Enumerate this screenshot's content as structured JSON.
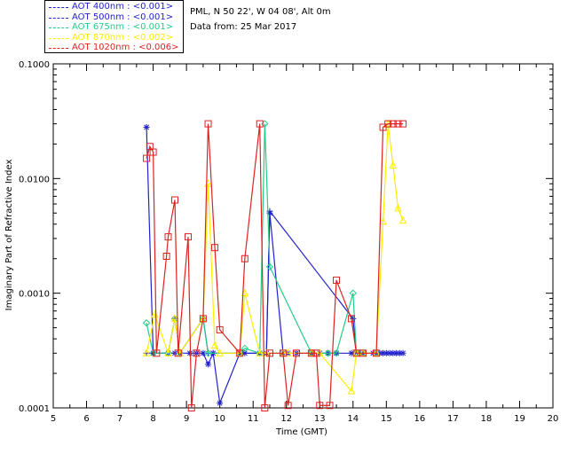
{
  "header": {
    "location": "PML, N 50 22', W 04 08', Alt 0m",
    "date": "Data from: 25 Mar 2017"
  },
  "legend": [
    {
      "label": "AOT  400nm : <0.001>",
      "color": "#2222cc"
    },
    {
      "label": "AOT  500nm : <0.001>",
      "color": "#2222cc"
    },
    {
      "label": "AOT  675nm : <0.001>",
      "color": "#22cc88"
    },
    {
      "label": "AOT  870nm : <0.002>",
      "color": "#ffee00"
    },
    {
      "label": "AOT 1020nm : <0.006>",
      "color": "#dd2222"
    }
  ],
  "chart_data": {
    "type": "line",
    "title": "",
    "xlabel": "Time (GMT)",
    "ylabel": "Imaginary Part of Refractive Index",
    "xlim": [
      5,
      20
    ],
    "ylim": [
      0.0001,
      0.1
    ],
    "yscale": "log",
    "xticks": [
      5,
      6,
      7,
      8,
      9,
      10,
      11,
      12,
      13,
      14,
      15,
      16,
      17,
      18,
      19,
      20
    ],
    "yticks": [
      {
        "value": 0.0001,
        "label": "0.0001"
      },
      {
        "value": 0.001,
        "label": "0.0010"
      },
      {
        "value": 0.01,
        "label": "0.0100"
      },
      {
        "value": 0.1,
        "label": "0.1000"
      }
    ],
    "series": [
      {
        "name": "AOT 500nm",
        "color": "#2222cc",
        "marker": "star",
        "points": [
          [
            7.8,
            0.028
          ],
          [
            8.0,
            0.0003
          ],
          [
            8.45,
            0.0003
          ],
          [
            8.65,
            0.0003
          ],
          [
            8.8,
            0.0003
          ],
          [
            9.1,
            0.0003
          ],
          [
            9.3,
            0.0003
          ],
          [
            9.5,
            0.0003
          ],
          [
            9.65,
            0.00024
          ],
          [
            9.8,
            0.0003
          ],
          [
            10.0,
            0.00011
          ],
          [
            10.6,
            0.0003
          ],
          [
            10.75,
            0.0003
          ],
          [
            11.2,
            0.0003
          ],
          [
            11.4,
            0.0003
          ],
          [
            11.5,
            0.005
          ],
          [
            11.9,
            0.0003
          ],
          [
            12.05,
            0.0003
          ],
          [
            12.3,
            0.0003
          ],
          [
            12.75,
            0.0003
          ],
          [
            13.0,
            0.0003
          ],
          [
            13.25,
            0.0003
          ],
          [
            13.5,
            0.0003
          ],
          [
            13.95,
            0.0003
          ],
          [
            14.1,
            0.0003
          ],
          [
            14.3,
            0.0003
          ],
          [
            14.6,
            0.0003
          ],
          [
            14.7,
            0.0003
          ],
          [
            14.8,
            0.0003
          ],
          [
            14.9,
            0.0003
          ],
          [
            15.0,
            0.0003
          ],
          [
            15.1,
            0.0003
          ],
          [
            15.2,
            0.0003
          ],
          [
            15.3,
            0.0003
          ],
          [
            15.4,
            0.0003
          ],
          [
            15.5,
            0.0003
          ]
        ]
      },
      {
        "name": "AOT 400nm",
        "color": "#2222cc",
        "marker": "plus",
        "points": [
          [
            7.8,
            0.0003
          ],
          [
            8.0,
            0.0003
          ],
          [
            8.45,
            0.0003
          ],
          [
            8.65,
            0.0006
          ],
          [
            8.8,
            0.0003
          ],
          [
            9.5,
            0.0006
          ],
          [
            9.65,
            0.0003
          ],
          [
            9.8,
            0.0003
          ],
          [
            11.4,
            0.0003
          ],
          [
            11.5,
            0.0052
          ],
          [
            14.0,
            0.0006
          ],
          [
            14.1,
            0.0003
          ],
          [
            14.3,
            0.0003
          ],
          [
            14.7,
            0.0003
          ]
        ]
      },
      {
        "name": "AOT 675nm",
        "color": "#22cc88",
        "marker": "diamond",
        "points": [
          [
            7.8,
            0.00055
          ],
          [
            8.0,
            0.0003
          ],
          [
            8.45,
            0.0003
          ],
          [
            8.65,
            0.0006
          ],
          [
            8.8,
            0.0003
          ],
          [
            9.5,
            0.0006
          ],
          [
            9.65,
            0.0003
          ],
          [
            10.6,
            0.0003
          ],
          [
            10.75,
            0.00033
          ],
          [
            11.2,
            0.0003
          ],
          [
            11.35,
            0.03
          ],
          [
            11.5,
            0.0017
          ],
          [
            12.75,
            0.0003
          ],
          [
            13.25,
            0.0003
          ],
          [
            13.5,
            0.0003
          ],
          [
            14.0,
            0.001
          ],
          [
            14.1,
            0.0003
          ],
          [
            14.3,
            0.0003
          ],
          [
            14.7,
            0.0003
          ]
        ]
      },
      {
        "name": "AOT 870nm",
        "color": "#ffee00",
        "marker": "triangle",
        "points": [
          [
            7.8,
            0.0003
          ],
          [
            8.05,
            0.00065
          ],
          [
            8.45,
            0.0003
          ],
          [
            8.65,
            0.0006
          ],
          [
            8.8,
            0.0003
          ],
          [
            9.5,
            0.0006
          ],
          [
            9.65,
            0.009
          ],
          [
            9.85,
            0.00035
          ],
          [
            10.0,
            0.0003
          ],
          [
            10.6,
            0.0003
          ],
          [
            10.75,
            0.001
          ],
          [
            11.2,
            0.0003
          ],
          [
            11.4,
            0.0003
          ],
          [
            11.9,
            0.0003
          ],
          [
            12.05,
            0.0003
          ],
          [
            12.75,
            0.0003
          ],
          [
            13.0,
            0.0003
          ],
          [
            13.95,
            0.00014
          ],
          [
            14.1,
            0.0003
          ],
          [
            14.3,
            0.0003
          ],
          [
            14.7,
            0.0003
          ],
          [
            14.9,
            0.0042
          ],
          [
            15.05,
            0.03
          ],
          [
            15.2,
            0.013
          ],
          [
            15.35,
            0.0055
          ],
          [
            15.5,
            0.0043
          ]
        ]
      },
      {
        "name": "AOT 1020nm",
        "color": "#dd2222",
        "marker": "square",
        "points": [
          [
            7.8,
            0.015
          ],
          [
            7.9,
            0.019
          ],
          [
            8.0,
            0.017
          ],
          [
            8.1,
            0.0003
          ],
          [
            8.4,
            0.0021
          ],
          [
            8.45,
            0.0031
          ],
          [
            8.65,
            0.0065
          ],
          [
            8.75,
            0.0003
          ],
          [
            9.05,
            0.0031
          ],
          [
            9.15,
            0.0001
          ],
          [
            9.3,
            0.0003
          ],
          [
            9.5,
            0.0006
          ],
          [
            9.65,
            0.03
          ],
          [
            9.85,
            0.0025
          ],
          [
            10.0,
            0.00048
          ],
          [
            10.6,
            0.0003
          ],
          [
            10.75,
            0.002
          ],
          [
            11.2,
            0.03
          ],
          [
            11.35,
            0.0001
          ],
          [
            11.5,
            0.0003
          ],
          [
            11.9,
            0.0003
          ],
          [
            12.05,
            0.000105
          ],
          [
            12.3,
            0.0003
          ],
          [
            12.75,
            0.0003
          ],
          [
            12.9,
            0.0003
          ],
          [
            13.0,
            0.000105
          ],
          [
            13.3,
            0.000105
          ],
          [
            13.5,
            0.0013
          ],
          [
            13.95,
            0.0006
          ],
          [
            14.1,
            0.0003
          ],
          [
            14.3,
            0.0003
          ],
          [
            14.7,
            0.0003
          ],
          [
            14.9,
            0.028
          ],
          [
            15.05,
            0.03
          ],
          [
            15.2,
            0.03
          ],
          [
            15.35,
            0.03
          ],
          [
            15.5,
            0.03
          ]
        ]
      }
    ]
  }
}
